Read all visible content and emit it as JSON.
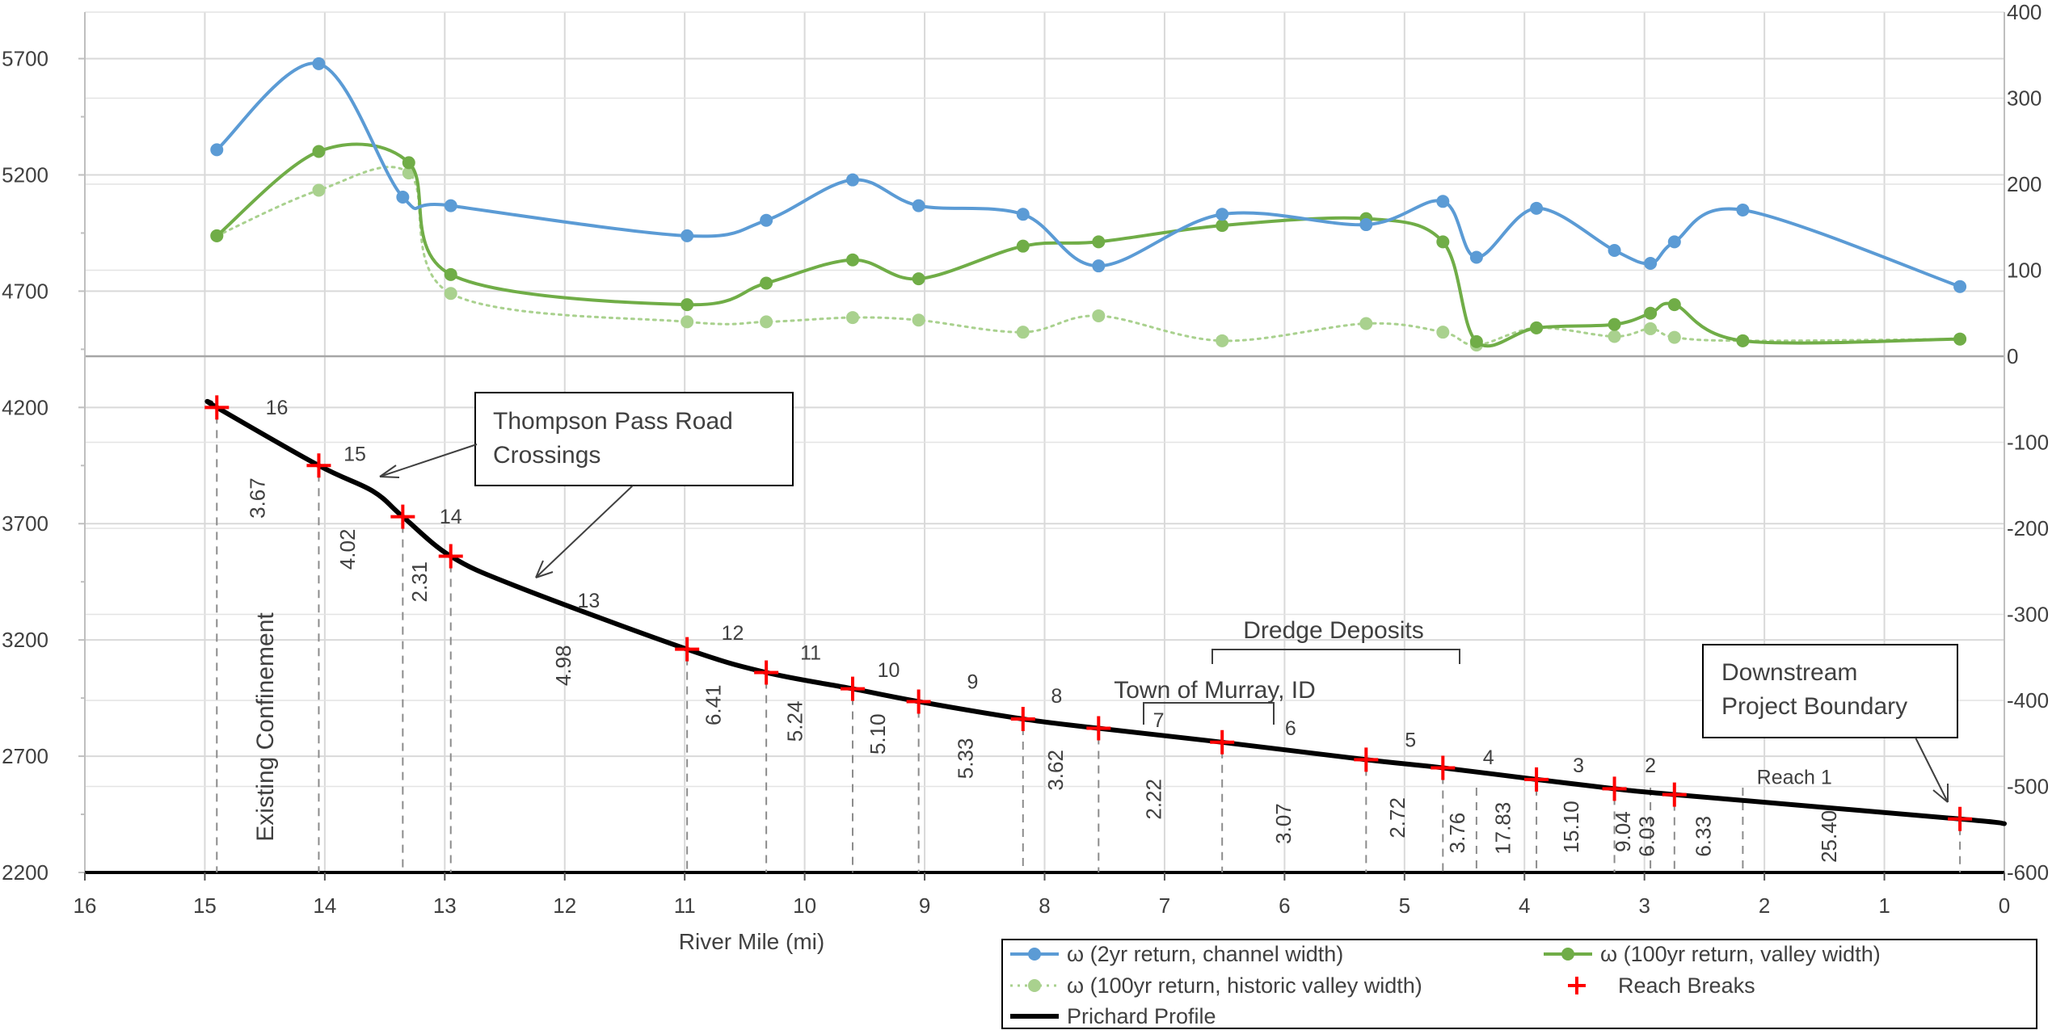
{
  "chart_data": {
    "type": "line",
    "xlabel": "River Mile (mi)",
    "x_range": [
      16,
      0
    ],
    "x_ticks": [
      "16",
      "15",
      "14",
      "13",
      "12",
      "11",
      "10",
      "9",
      "8",
      "7",
      "6",
      "5",
      "4",
      "3",
      "2",
      "1",
      "0"
    ],
    "y_left_range": [
      2200,
      5900
    ],
    "y_left_ticks": [
      "5700",
      "5200",
      "4700",
      "4200",
      "3700",
      "3200",
      "2700",
      "2200"
    ],
    "y_right_range": [
      -600,
      400
    ],
    "y_right_ticks": [
      "400",
      "300",
      "200",
      "100",
      "0",
      "-100",
      "-200",
      "-300",
      "-400",
      "-500",
      "-600"
    ],
    "grid": true,
    "legend_position": "bottom-right",
    "colors": {
      "channel": "#5b9bd5",
      "valley": "#70ad47",
      "historic": "#a9d18e",
      "profile": "#000000",
      "reach_break": "#ff0000",
      "grid": "#d9d9d9"
    },
    "series": [
      {
        "name": "ω (2yr return, channel width)",
        "axis": "right",
        "x": [
          14.9,
          14.05,
          13.35,
          12.95,
          10.98,
          10.32,
          9.6,
          9.05,
          8.18,
          7.55,
          6.52,
          5.32,
          4.68,
          4.4,
          3.9,
          3.25,
          2.95,
          2.75,
          2.18,
          0.37
        ],
        "y": [
          240,
          340,
          185,
          175,
          140,
          158,
          205,
          175,
          165,
          105,
          165,
          153,
          180,
          115,
          172,
          123,
          108,
          133,
          170,
          81
        ]
      },
      {
        "name": "ω (100yr return, valley width)",
        "axis": "right",
        "x": [
          14.9,
          14.05,
          13.3,
          12.95,
          10.98,
          10.32,
          9.6,
          9.05,
          8.18,
          7.55,
          6.52,
          5.32,
          4.68,
          4.4,
          3.9,
          3.25,
          2.95,
          2.75,
          2.18,
          0.37
        ],
        "y": [
          140,
          238,
          225,
          95,
          60,
          85,
          112,
          90,
          128,
          133,
          152,
          160,
          133,
          17,
          33,
          37,
          50,
          60,
          18,
          20
        ]
      },
      {
        "name": "ω (100yr return, historic valley width)",
        "axis": "right",
        "x": [
          14.9,
          14.05,
          13.3,
          12.95,
          10.98,
          10.32,
          9.6,
          9.05,
          8.18,
          7.55,
          6.52,
          5.32,
          4.68,
          4.4,
          3.9,
          3.25,
          2.95,
          2.75,
          2.18,
          0.37
        ],
        "y": [
          140,
          193,
          213,
          73,
          40,
          40,
          45,
          42,
          28,
          47,
          18,
          38,
          28,
          13,
          33,
          23,
          32,
          22,
          18,
          20
        ]
      },
      {
        "name": "Reach Breaks",
        "axis": "left",
        "x": [
          14.9,
          14.05,
          13.35,
          12.95,
          10.98,
          10.32,
          9.6,
          9.05,
          8.18,
          7.55,
          6.52,
          5.32,
          4.68,
          3.9,
          3.25,
          2.75,
          0.37
        ],
        "y": [
          4200,
          3950,
          3730,
          3560,
          3160,
          3060,
          2990,
          2935,
          2860,
          2820,
          2760,
          2685,
          2650,
          2600,
          2560,
          2535,
          2430
        ]
      },
      {
        "name": "Prichard Profile",
        "axis": "left",
        "x": [
          14.95,
          14.9,
          14.05,
          13.6,
          13.35,
          12.95,
          12.4,
          10.98,
          10.32,
          9.6,
          9.05,
          8.18,
          7.55,
          6.52,
          5.32,
          4.68,
          3.9,
          3.25,
          2.75,
          0.37,
          0
        ],
        "y": [
          4220,
          4200,
          3950,
          3840,
          3730,
          3560,
          3430,
          3160,
          3060,
          2990,
          2935,
          2860,
          2820,
          2760,
          2685,
          2650,
          2600,
          2560,
          2535,
          2430,
          2410
        ]
      }
    ],
    "reach_numbers": [
      {
        "label": "16",
        "x": 14.4,
        "y": 4170
      },
      {
        "label": "15",
        "x": 13.75,
        "y": 3970
      },
      {
        "label": "14",
        "x": 12.95,
        "y": 3700
      },
      {
        "label": "13",
        "x": 11.8,
        "y": 3340
      },
      {
        "label": "12",
        "x": 10.6,
        "y": 3200
      },
      {
        "label": "11",
        "x": 9.95,
        "y": 3115
      },
      {
        "label": "10",
        "x": 9.3,
        "y": 3040
      },
      {
        "label": "9",
        "x": 8.6,
        "y": 2990
      },
      {
        "label": "8",
        "x": 7.9,
        "y": 2930
      },
      {
        "label": "7",
        "x": 7.05,
        "y": 2825
      },
      {
        "label": "6",
        "x": 5.95,
        "y": 2790
      },
      {
        "label": "5",
        "x": 4.95,
        "y": 2740
      },
      {
        "label": "4",
        "x": 4.3,
        "y": 2665
      },
      {
        "label": "3",
        "x": 3.55,
        "y": 2630
      },
      {
        "label": "2",
        "x": 2.95,
        "y": 2630
      },
      {
        "label": "Reach 1",
        "x": 1.75,
        "y": 2580
      }
    ],
    "reach_lengths": [
      {
        "label": "3.67",
        "x": 14.5,
        "y": 3810
      },
      {
        "label": "4.02",
        "x": 13.75,
        "y": 3590
      },
      {
        "label": "2.31",
        "x": 13.15,
        "y": 3450
      },
      {
        "label": "4.98",
        "x": 11.95,
        "y": 3090
      },
      {
        "label": "6.41",
        "x": 10.7,
        "y": 2920
      },
      {
        "label": "5.24",
        "x": 10.02,
        "y": 2850
      },
      {
        "label": "5.10",
        "x": 9.33,
        "y": 2795
      },
      {
        "label": "5.33",
        "x": 8.6,
        "y": 2690
      },
      {
        "label": "3.62",
        "x": 7.85,
        "y": 2640
      },
      {
        "label": "2.22",
        "x": 7.03,
        "y": 2515
      },
      {
        "label": "3.07",
        "x": 5.95,
        "y": 2410
      },
      {
        "label": "2.72",
        "x": 5.0,
        "y": 2435
      },
      {
        "label": "3.76",
        "x": 4.5,
        "y": 2370
      },
      {
        "label": "17.83",
        "x": 4.12,
        "y": 2390
      },
      {
        "label": "15.10",
        "x": 3.55,
        "y": 2395
      },
      {
        "label": "9.04",
        "x": 3.12,
        "y": 2375
      },
      {
        "label": "6.03",
        "x": 2.92,
        "y": 2355
      },
      {
        "label": "6.33",
        "x": 2.45,
        "y": 2355
      },
      {
        "label": "25.40",
        "x": 1.4,
        "y": 2355
      }
    ],
    "annotations": {
      "thompson": "Thompson Pass Road Crossings",
      "confinement": "Existing Confinement",
      "dredge": "Dredge Deposits",
      "murray": "Town of Murray, ID",
      "downstream": "Downstream Project Boundary"
    }
  }
}
